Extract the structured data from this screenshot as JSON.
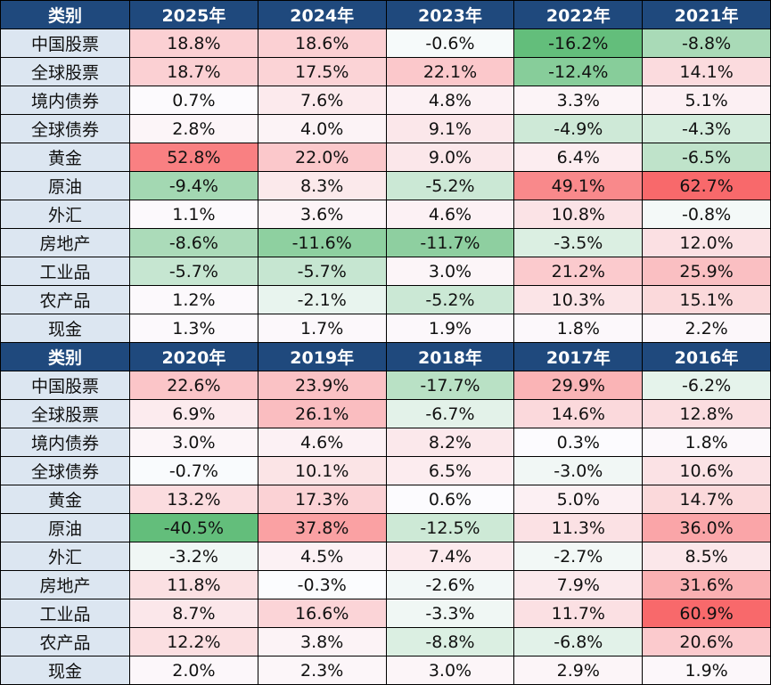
{
  "colors": {
    "header_bg": "#1F497D",
    "category_bg": "#DCE6F1",
    "max_color": "#F8696B",
    "mid_color": "#FCFCFF",
    "min_color": "#63BE7B"
  },
  "chart_data": [
    {
      "type": "heatmap",
      "corner_label": "类别",
      "columns": [
        "2025年",
        "2024年",
        "2023年",
        "2022年",
        "2021年"
      ],
      "rows": [
        {
          "label": "中国股票",
          "values": [
            "18.8%",
            "18.6%",
            "-0.6%",
            "-16.2%",
            "-8.8%"
          ]
        },
        {
          "label": "全球股票",
          "values": [
            "18.7%",
            "17.5%",
            "22.1%",
            "-12.4%",
            "14.1%"
          ]
        },
        {
          "label": "境内债券",
          "values": [
            "0.7%",
            "7.6%",
            "4.8%",
            "3.3%",
            "5.1%"
          ]
        },
        {
          "label": "全球债券",
          "values": [
            "2.8%",
            "4.0%",
            "9.1%",
            "-4.9%",
            "-4.3%"
          ]
        },
        {
          "label": "黄金",
          "values": [
            "52.8%",
            "22.0%",
            "9.0%",
            "6.4%",
            "-6.5%"
          ]
        },
        {
          "label": "原油",
          "values": [
            "-9.4%",
            "8.3%",
            "-5.2%",
            "49.1%",
            "62.7%"
          ]
        },
        {
          "label": "外汇",
          "values": [
            "1.1%",
            "3.6%",
            "4.6%",
            "10.8%",
            "-0.8%"
          ]
        },
        {
          "label": "房地产",
          "values": [
            "-8.6%",
            "-11.6%",
            "-11.7%",
            "-3.5%",
            "12.0%"
          ]
        },
        {
          "label": "工业品",
          "values": [
            "-5.7%",
            "-5.7%",
            "3.0%",
            "21.2%",
            "25.9%"
          ]
        },
        {
          "label": "农产品",
          "values": [
            "1.2%",
            "-2.1%",
            "-5.2%",
            "10.3%",
            "15.1%"
          ]
        },
        {
          "label": "现金",
          "values": [
            "1.3%",
            "1.7%",
            "1.9%",
            "1.8%",
            "2.2%"
          ]
        }
      ]
    },
    {
      "type": "heatmap",
      "corner_label": "类别",
      "columns": [
        "2020年",
        "2019年",
        "2018年",
        "2017年",
        "2016年"
      ],
      "rows": [
        {
          "label": "中国股票",
          "values": [
            "22.6%",
            "23.9%",
            "-17.7%",
            "29.9%",
            "-6.2%"
          ]
        },
        {
          "label": "全球股票",
          "values": [
            "6.9%",
            "26.1%",
            "-6.7%",
            "14.6%",
            "12.8%"
          ]
        },
        {
          "label": "境内债券",
          "values": [
            "3.0%",
            "4.6%",
            "8.2%",
            "0.3%",
            "1.8%"
          ]
        },
        {
          "label": "全球债券",
          "values": [
            "-0.7%",
            "10.1%",
            "6.5%",
            "-3.0%",
            "10.6%"
          ]
        },
        {
          "label": "黄金",
          "values": [
            "13.2%",
            "17.3%",
            "0.6%",
            "5.0%",
            "14.7%"
          ]
        },
        {
          "label": "原油",
          "values": [
            "-40.5%",
            "37.8%",
            "-12.5%",
            "11.3%",
            "36.0%"
          ]
        },
        {
          "label": "外汇",
          "values": [
            "-3.2%",
            "4.5%",
            "7.4%",
            "-2.7%",
            "8.5%"
          ]
        },
        {
          "label": "房地产",
          "values": [
            "11.8%",
            "-0.3%",
            "-2.6%",
            "7.9%",
            "31.6%"
          ]
        },
        {
          "label": "工业品",
          "values": [
            "8.7%",
            "16.6%",
            "-3.3%",
            "11.7%",
            "60.9%"
          ]
        },
        {
          "label": "农产品",
          "values": [
            "12.2%",
            "3.8%",
            "-8.8%",
            "-6.8%",
            "20.6%"
          ]
        },
        {
          "label": "现金",
          "values": [
            "2.0%",
            "2.3%",
            "3.0%",
            "2.9%",
            "1.9%"
          ]
        }
      ]
    }
  ]
}
